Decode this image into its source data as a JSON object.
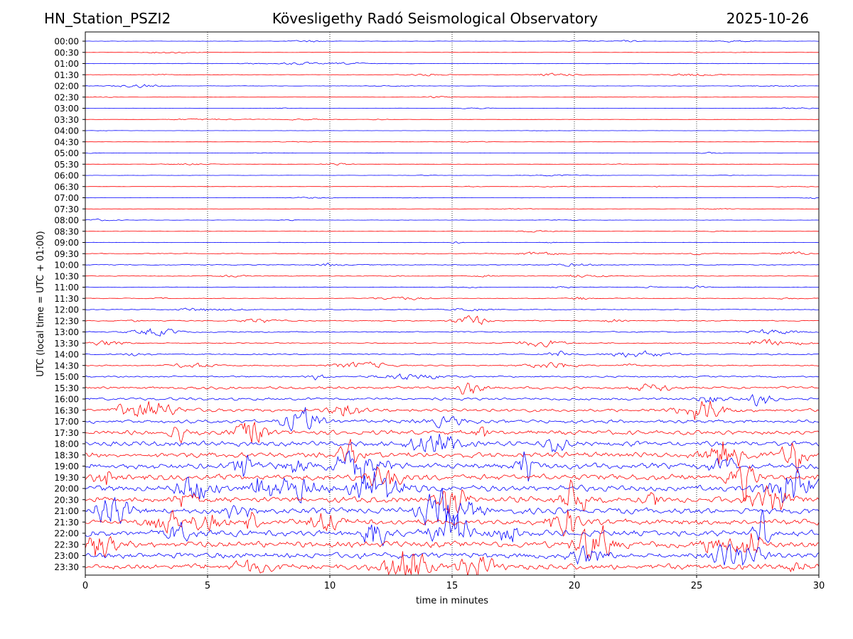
{
  "header": {
    "station": "HN_Station_PSZI2",
    "title": "Kövesligethy Radó Seismological Observatory",
    "date": "2025-10-26"
  },
  "chart_data": {
    "type": "line",
    "chart_kind": "helicorder",
    "xlabel": "time in minutes",
    "ylabel": "UTC (local time = UTC + 01:00)",
    "xlim": [
      0,
      30
    ],
    "x_ticks": [
      0,
      5,
      10,
      15,
      20,
      25,
      30
    ],
    "vertical_grid": [
      5,
      10,
      15,
      20,
      25
    ],
    "grid_style": "dotted vertical lines",
    "trace_colors": [
      "#0000ff",
      "#ff0000"
    ],
    "rows": [
      "00:00",
      "00:30",
      "01:00",
      "01:30",
      "02:00",
      "02:30",
      "03:00",
      "03:30",
      "04:00",
      "04:30",
      "05:00",
      "05:30",
      "06:00",
      "06:30",
      "07:00",
      "07:30",
      "08:00",
      "08:30",
      "09:00",
      "09:30",
      "10:00",
      "10:30",
      "11:00",
      "11:30",
      "12:00",
      "12:30",
      "13:00",
      "13:30",
      "14:00",
      "14:30",
      "15:00",
      "15:30",
      "16:00",
      "16:30",
      "17:00",
      "17:30",
      "18:00",
      "18:30",
      "19:00",
      "19:30",
      "20:00",
      "20:30",
      "21:00",
      "21:30",
      "22:00",
      "22:30",
      "23:00",
      "23:30"
    ],
    "relative_amplitude": [
      0.25,
      0.2,
      0.3,
      0.35,
      0.3,
      0.2,
      0.25,
      0.2,
      0.15,
      0.2,
      0.2,
      0.2,
      0.2,
      0.2,
      0.2,
      0.2,
      0.25,
      0.3,
      0.3,
      0.6,
      0.7,
      0.5,
      0.4,
      0.5,
      0.6,
      0.8,
      0.9,
      0.8,
      0.9,
      0.9,
      1.2,
      1.8,
      1.8,
      2.2,
      2.4,
      3,
      3.4,
      3.6,
      4,
      4,
      4,
      4,
      4,
      4,
      4,
      4,
      4,
      4
    ]
  }
}
